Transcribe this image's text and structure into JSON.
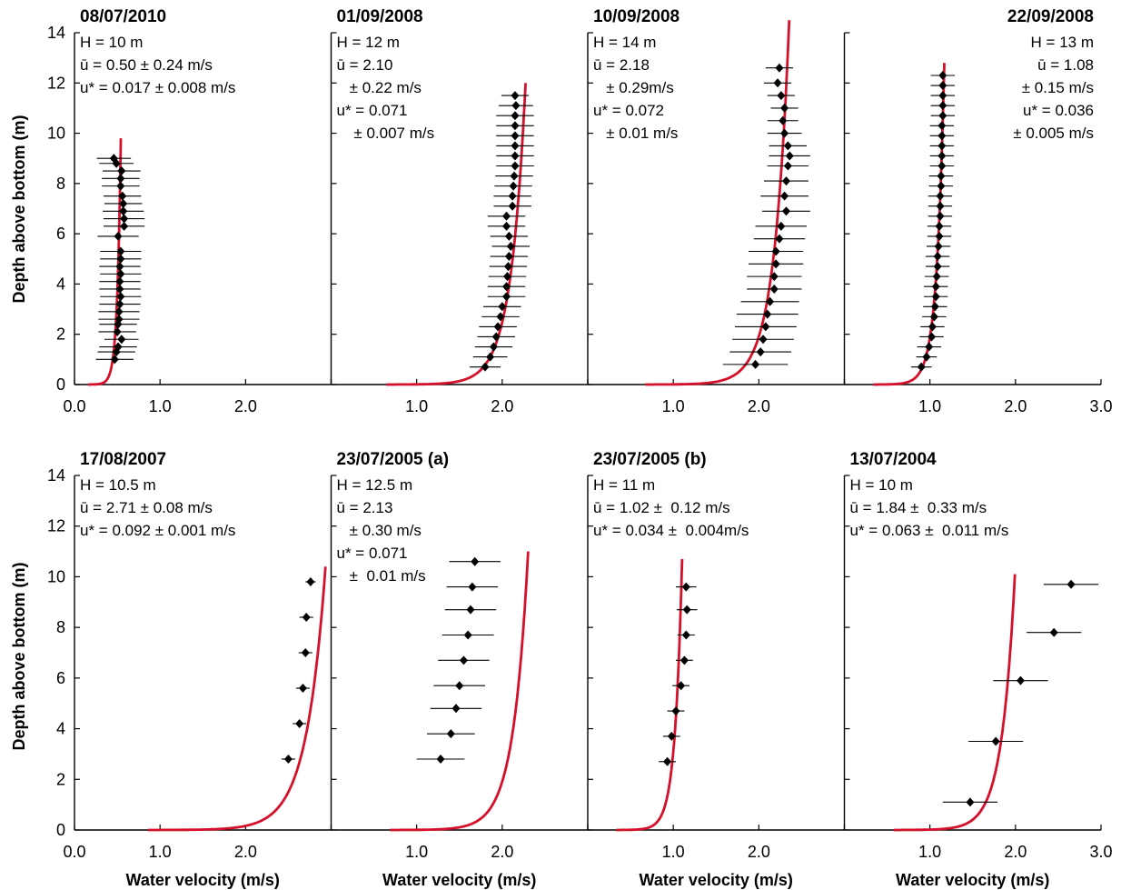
{
  "figure": {
    "ylabel": "Depth above bottom (m)",
    "xlabel": "Water velocity (m/s)"
  },
  "chart_data": [
    {
      "type": "scatter",
      "title": "08/07/2010",
      "annotations": [
        "H = 10 m",
        "ū = 0.50 ± 0.24 m/s",
        "u* = 0.017 ± 0.008 m/s"
      ],
      "xlim": [
        0,
        3
      ],
      "ylim": [
        0,
        14
      ],
      "xticks": [
        "0.0",
        "1.0",
        "2.0"
      ],
      "yticks": [
        "0",
        "2",
        "4",
        "6",
        "8",
        "10",
        "12",
        "14"
      ],
      "points": [
        {
          "x": 0.47,
          "y": 1.0,
          "err": 0.22
        },
        {
          "x": 0.49,
          "y": 1.3,
          "err": 0.22
        },
        {
          "x": 0.51,
          "y": 1.5,
          "err": 0.22
        },
        {
          "x": 0.55,
          "y": 1.8,
          "err": 0.2
        },
        {
          "x": 0.5,
          "y": 2.1,
          "err": 0.22
        },
        {
          "x": 0.51,
          "y": 2.4,
          "err": 0.22
        },
        {
          "x": 0.52,
          "y": 2.6,
          "err": 0.24
        },
        {
          "x": 0.52,
          "y": 2.9,
          "err": 0.24
        },
        {
          "x": 0.53,
          "y": 3.2,
          "err": 0.24
        },
        {
          "x": 0.54,
          "y": 3.5,
          "err": 0.24
        },
        {
          "x": 0.53,
          "y": 3.8,
          "err": 0.24
        },
        {
          "x": 0.53,
          "y": 4.1,
          "err": 0.24
        },
        {
          "x": 0.54,
          "y": 4.4,
          "err": 0.24
        },
        {
          "x": 0.53,
          "y": 4.7,
          "err": 0.24
        },
        {
          "x": 0.54,
          "y": 5.0,
          "err": 0.24
        },
        {
          "x": 0.54,
          "y": 5.3,
          "err": 0.24
        },
        {
          "x": 0.51,
          "y": 5.9,
          "err": 0.24
        },
        {
          "x": 0.58,
          "y": 6.3,
          "err": 0.24
        },
        {
          "x": 0.58,
          "y": 6.6,
          "err": 0.24
        },
        {
          "x": 0.57,
          "y": 6.9,
          "err": 0.24
        },
        {
          "x": 0.57,
          "y": 7.2,
          "err": 0.22
        },
        {
          "x": 0.56,
          "y": 7.5,
          "err": 0.22
        },
        {
          "x": 0.54,
          "y": 7.9,
          "err": 0.22
        },
        {
          "x": 0.54,
          "y": 8.2,
          "err": 0.22
        },
        {
          "x": 0.55,
          "y": 8.5,
          "err": 0.22
        },
        {
          "x": 0.49,
          "y": 8.8,
          "err": 0.2
        },
        {
          "x": 0.46,
          "y": 9.0,
          "err": 0.2
        }
      ],
      "fit": {
        "ubar": 0.5,
        "ustar": 0.017,
        "depth": 9.8
      }
    },
    {
      "type": "scatter",
      "title": "01/09/2008",
      "annotations": [
        "H = 12 m",
        "ū = 2.10",
        "   ± 0.22 m/s",
        "u* = 0.071",
        "    ± 0.007 m/s"
      ],
      "xlim": [
        0,
        3
      ],
      "ylim": [
        0,
        14
      ],
      "xticks": [
        "1.0",
        "2.0"
      ],
      "yticks": [],
      "points": [
        {
          "x": 1.8,
          "y": 0.7,
          "err": 0.18
        },
        {
          "x": 1.86,
          "y": 1.1,
          "err": 0.2
        },
        {
          "x": 1.9,
          "y": 1.5,
          "err": 0.22
        },
        {
          "x": 1.93,
          "y": 1.9,
          "err": 0.22
        },
        {
          "x": 1.95,
          "y": 2.3,
          "err": 0.22
        },
        {
          "x": 1.98,
          "y": 2.7,
          "err": 0.22
        },
        {
          "x": 2.0,
          "y": 3.1,
          "err": 0.22
        },
        {
          "x": 2.05,
          "y": 3.5,
          "err": 0.22
        },
        {
          "x": 2.05,
          "y": 3.9,
          "err": 0.22
        },
        {
          "x": 2.06,
          "y": 4.3,
          "err": 0.22
        },
        {
          "x": 2.07,
          "y": 4.7,
          "err": 0.22
        },
        {
          "x": 2.08,
          "y": 5.1,
          "err": 0.22
        },
        {
          "x": 2.1,
          "y": 5.5,
          "err": 0.22
        },
        {
          "x": 2.08,
          "y": 5.9,
          "err": 0.22
        },
        {
          "x": 2.05,
          "y": 6.3,
          "err": 0.22
        },
        {
          "x": 2.05,
          "y": 6.7,
          "err": 0.22
        },
        {
          "x": 2.12,
          "y": 7.1,
          "err": 0.22
        },
        {
          "x": 2.12,
          "y": 7.5,
          "err": 0.22
        },
        {
          "x": 2.13,
          "y": 7.9,
          "err": 0.22
        },
        {
          "x": 2.14,
          "y": 8.3,
          "err": 0.22
        },
        {
          "x": 2.15,
          "y": 8.7,
          "err": 0.22
        },
        {
          "x": 2.15,
          "y": 9.1,
          "err": 0.22
        },
        {
          "x": 2.15,
          "y": 9.5,
          "err": 0.22
        },
        {
          "x": 2.15,
          "y": 9.9,
          "err": 0.22
        },
        {
          "x": 2.15,
          "y": 10.3,
          "err": 0.22
        },
        {
          "x": 2.15,
          "y": 10.7,
          "err": 0.22
        },
        {
          "x": 2.16,
          "y": 11.1,
          "err": 0.2
        },
        {
          "x": 2.15,
          "y": 11.5,
          "err": 0.16
        }
      ],
      "fit": {
        "ubar": 2.1,
        "ustar": 0.071,
        "depth": 12.0
      }
    },
    {
      "type": "scatter",
      "title": "10/09/2008",
      "annotations": [
        "H = 14 m",
        "ū = 2.18",
        "   ± 0.29m/s",
        "u* = 0.072",
        "   ± 0.01 m/s"
      ],
      "xlim": [
        0,
        3
      ],
      "ylim": [
        0,
        14
      ],
      "xticks": [
        "1.0",
        "2.0"
      ],
      "yticks": [],
      "points": [
        {
          "x": 1.96,
          "y": 0.8,
          "err": 0.38
        },
        {
          "x": 2.02,
          "y": 1.3,
          "err": 0.36
        },
        {
          "x": 2.05,
          "y": 1.8,
          "err": 0.36
        },
        {
          "x": 2.08,
          "y": 2.3,
          "err": 0.36
        },
        {
          "x": 2.1,
          "y": 2.8,
          "err": 0.36
        },
        {
          "x": 2.13,
          "y": 3.3,
          "err": 0.34
        },
        {
          "x": 2.18,
          "y": 3.8,
          "err": 0.32
        },
        {
          "x": 2.18,
          "y": 4.3,
          "err": 0.32
        },
        {
          "x": 2.2,
          "y": 4.8,
          "err": 0.32
        },
        {
          "x": 2.2,
          "y": 5.3,
          "err": 0.32
        },
        {
          "x": 2.24,
          "y": 5.8,
          "err": 0.3
        },
        {
          "x": 2.26,
          "y": 6.3,
          "err": 0.3
        },
        {
          "x": 2.32,
          "y": 6.9,
          "err": 0.28
        },
        {
          "x": 2.3,
          "y": 7.5,
          "err": 0.28
        },
        {
          "x": 2.32,
          "y": 8.1,
          "err": 0.26
        },
        {
          "x": 2.34,
          "y": 8.7,
          "err": 0.24
        },
        {
          "x": 2.36,
          "y": 9.1,
          "err": 0.24
        },
        {
          "x": 2.34,
          "y": 9.5,
          "err": 0.22
        },
        {
          "x": 2.3,
          "y": 10.0,
          "err": 0.2
        },
        {
          "x": 2.28,
          "y": 10.5,
          "err": 0.18
        },
        {
          "x": 2.3,
          "y": 11.0,
          "err": 0.16
        },
        {
          "x": 2.26,
          "y": 11.5,
          "err": 0.16
        },
        {
          "x": 2.22,
          "y": 12.0,
          "err": 0.16
        },
        {
          "x": 2.24,
          "y": 12.6,
          "err": 0.16
        }
      ],
      "fit": {
        "ubar": 2.18,
        "ustar": 0.072,
        "depth": 14.5
      }
    },
    {
      "type": "scatter",
      "title": "22/09/2008",
      "annotations": [
        "H = 13 m",
        "ū = 1.08",
        "± 0.15 m/s",
        "u* = 0.036",
        "± 0.005 m/s"
      ],
      "xlim": [
        0,
        3
      ],
      "ylim": [
        0,
        14
      ],
      "xticks": [
        "1.0",
        "2.0",
        "3.0"
      ],
      "yticks": [],
      "points": [
        {
          "x": 0.9,
          "y": 0.7,
          "err": 0.12
        },
        {
          "x": 0.96,
          "y": 1.1,
          "err": 0.12
        },
        {
          "x": 0.99,
          "y": 1.5,
          "err": 0.14
        },
        {
          "x": 1.02,
          "y": 1.9,
          "err": 0.14
        },
        {
          "x": 1.03,
          "y": 2.3,
          "err": 0.14
        },
        {
          "x": 1.05,
          "y": 2.7,
          "err": 0.14
        },
        {
          "x": 1.06,
          "y": 3.1,
          "err": 0.14
        },
        {
          "x": 1.07,
          "y": 3.5,
          "err": 0.14
        },
        {
          "x": 1.07,
          "y": 3.9,
          "err": 0.14
        },
        {
          "x": 1.08,
          "y": 4.3,
          "err": 0.14
        },
        {
          "x": 1.09,
          "y": 4.7,
          "err": 0.14
        },
        {
          "x": 1.09,
          "y": 5.1,
          "err": 0.14
        },
        {
          "x": 1.1,
          "y": 5.5,
          "err": 0.14
        },
        {
          "x": 1.11,
          "y": 5.9,
          "err": 0.14
        },
        {
          "x": 1.11,
          "y": 6.3,
          "err": 0.14
        },
        {
          "x": 1.12,
          "y": 6.7,
          "err": 0.14
        },
        {
          "x": 1.12,
          "y": 7.1,
          "err": 0.14
        },
        {
          "x": 1.12,
          "y": 7.5,
          "err": 0.14
        },
        {
          "x": 1.13,
          "y": 7.9,
          "err": 0.14
        },
        {
          "x": 1.13,
          "y": 8.3,
          "err": 0.14
        },
        {
          "x": 1.14,
          "y": 8.7,
          "err": 0.14
        },
        {
          "x": 1.14,
          "y": 9.1,
          "err": 0.14
        },
        {
          "x": 1.14,
          "y": 9.5,
          "err": 0.14
        },
        {
          "x": 1.14,
          "y": 9.9,
          "err": 0.14
        },
        {
          "x": 1.14,
          "y": 10.3,
          "err": 0.14
        },
        {
          "x": 1.15,
          "y": 10.7,
          "err": 0.14
        },
        {
          "x": 1.15,
          "y": 11.1,
          "err": 0.14
        },
        {
          "x": 1.15,
          "y": 11.5,
          "err": 0.14
        },
        {
          "x": 1.15,
          "y": 11.9,
          "err": 0.14
        },
        {
          "x": 1.15,
          "y": 12.3,
          "err": 0.14
        }
      ],
      "fit": {
        "ubar": 1.08,
        "ustar": 0.036,
        "depth": 12.8
      }
    },
    {
      "type": "scatter",
      "title": "17/08/2007",
      "annotations": [
        "H = 10.5 m",
        "ū = 2.71 ± 0.08 m/s",
        "u* = 0.092 ± 0.001 m/s"
      ],
      "xlim": [
        0,
        3
      ],
      "ylim": [
        0,
        14
      ],
      "xticks": [
        "0.0",
        "1.0",
        "2.0"
      ],
      "yticks": [
        "0",
        "2",
        "4",
        "6",
        "8",
        "10",
        "12",
        "14"
      ],
      "points": [
        {
          "x": 2.5,
          "y": 2.8,
          "err": 0.08
        },
        {
          "x": 2.63,
          "y": 4.2,
          "err": 0.08
        },
        {
          "x": 2.67,
          "y": 5.6,
          "err": 0.08
        },
        {
          "x": 2.7,
          "y": 7.0,
          "err": 0.08
        },
        {
          "x": 2.71,
          "y": 8.4,
          "err": 0.08
        },
        {
          "x": 2.76,
          "y": 9.8,
          "err": 0.06
        }
      ],
      "fit": {
        "ubar": 2.71,
        "ustar": 0.092,
        "depth": 10.4
      }
    },
    {
      "type": "scatter",
      "title": "23/07/2005 (a)",
      "annotations": [
        "H = 12.5 m",
        "ū = 2.13",
        "   ± 0.30 m/s",
        "u* = 0.071",
        "   ±  0.01 m/s"
      ],
      "xlim": [
        0,
        3
      ],
      "ylim": [
        0,
        14
      ],
      "xticks": [
        "1.0",
        "2.0"
      ],
      "yticks": [],
      "points": [
        {
          "x": 1.28,
          "y": 2.8,
          "err": 0.28
        },
        {
          "x": 1.4,
          "y": 3.8,
          "err": 0.28
        },
        {
          "x": 1.46,
          "y": 4.8,
          "err": 0.3
        },
        {
          "x": 1.5,
          "y": 5.7,
          "err": 0.3
        },
        {
          "x": 1.55,
          "y": 6.7,
          "err": 0.3
        },
        {
          "x": 1.6,
          "y": 7.7,
          "err": 0.3
        },
        {
          "x": 1.63,
          "y": 8.7,
          "err": 0.3
        },
        {
          "x": 1.65,
          "y": 9.6,
          "err": 0.3
        },
        {
          "x": 1.68,
          "y": 10.6,
          "err": 0.3
        }
      ],
      "fit": {
        "ubar": 2.13,
        "ustar": 0.071,
        "depth": 11.0
      }
    },
    {
      "type": "scatter",
      "title": "23/07/2005 (b)",
      "annotations": [
        "H = 11 m",
        "ū = 1.02 ±  0.12 m/s",
        "u* = 0.034 ±  0.004m/s"
      ],
      "xlim": [
        0,
        3
      ],
      "ylim": [
        0,
        14
      ],
      "xticks": [
        "1.0",
        "2.0"
      ],
      "yticks": [],
      "points": [
        {
          "x": 0.93,
          "y": 2.7,
          "err": 0.1
        },
        {
          "x": 0.98,
          "y": 3.7,
          "err": 0.1
        },
        {
          "x": 1.03,
          "y": 4.7,
          "err": 0.1
        },
        {
          "x": 1.09,
          "y": 5.7,
          "err": 0.1
        },
        {
          "x": 1.13,
          "y": 6.7,
          "err": 0.1
        },
        {
          "x": 1.15,
          "y": 7.7,
          "err": 0.1
        },
        {
          "x": 1.16,
          "y": 8.7,
          "err": 0.12
        },
        {
          "x": 1.15,
          "y": 9.6,
          "err": 0.12
        }
      ],
      "fit": {
        "ubar": 1.02,
        "ustar": 0.034,
        "depth": 10.7
      }
    },
    {
      "type": "scatter",
      "title": "13/07/2004",
      "annotations": [
        "H = 10 m",
        "ū = 1.84 ±  0.33 m/s",
        "u* = 0.063 ±  0.011 m/s"
      ],
      "xlim": [
        0,
        3
      ],
      "ylim": [
        0,
        14
      ],
      "xticks": [
        "1.0",
        "2.0",
        "3.0"
      ],
      "yticks": [],
      "points": [
        {
          "x": 1.47,
          "y": 1.1,
          "err": 0.32
        },
        {
          "x": 1.77,
          "y": 3.5,
          "err": 0.32
        },
        {
          "x": 2.06,
          "y": 5.9,
          "err": 0.32
        },
        {
          "x": 2.45,
          "y": 7.8,
          "err": 0.32
        },
        {
          "x": 2.65,
          "y": 9.7,
          "err": 0.32
        }
      ],
      "fit": {
        "ubar": 1.84,
        "ustar": 0.063,
        "depth": 10.1
      }
    }
  ]
}
